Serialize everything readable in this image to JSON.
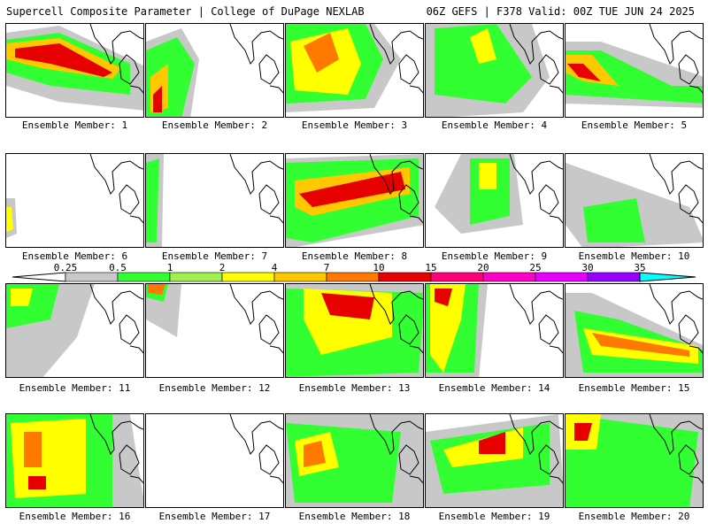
{
  "header": {
    "left": "Supercell Composite Parameter | College of DuPage NEXLAB",
    "right": "06Z GEFS | F378 Valid: 00Z TUE JUN 24 2025"
  },
  "legend": {
    "labels": [
      "0.25",
      "0.5",
      "1",
      "2",
      "4",
      "7",
      "10",
      "15",
      "20",
      "25",
      "30",
      "35"
    ],
    "colors": [
      "#c8c8c8",
      "#32ff32",
      "#a0f050",
      "#ffff00",
      "#ffc800",
      "#ff7800",
      "#e60000",
      "#ff0078",
      "#ff00c8",
      "#e600ff",
      "#9600ff",
      "#b478ff",
      "#00ffff"
    ]
  },
  "panels": [
    {
      "label": "Ensemble Member: 1"
    },
    {
      "label": "Ensemble Member: 2"
    },
    {
      "label": "Ensemble Member: 3"
    },
    {
      "label": "Ensemble Member: 4"
    },
    {
      "label": "Ensemble Member: 5"
    },
    {
      "label": "Ensemble Member: 6"
    },
    {
      "label": "Ensemble Member: 7"
    },
    {
      "label": "Ensemble Member: 8"
    },
    {
      "label": "Ensemble Member: 9"
    },
    {
      "label": "Ensemble Member: 10"
    },
    {
      "label": "Ensemble Member: 11"
    },
    {
      "label": "Ensemble Member: 12"
    },
    {
      "label": "Ensemble Member: 13"
    },
    {
      "label": "Ensemble Member: 14"
    },
    {
      "label": "Ensemble Member: 15"
    },
    {
      "label": "Ensemble Member: 16"
    },
    {
      "label": "Ensemble Member: 17"
    },
    {
      "label": "Ensemble Member: 18"
    },
    {
      "label": "Ensemble Member: 19"
    },
    {
      "label": "Ensemble Member: 20"
    }
  ]
}
